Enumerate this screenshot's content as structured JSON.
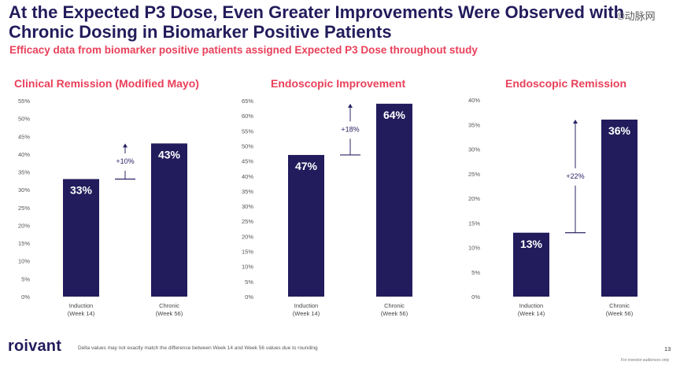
{
  "header": {
    "title_line1": "At the Expected P3 Dose, Even Greater Improvements Were Observed with",
    "title_line2": "Chronic Dosing in Biomarker Positive Patients",
    "subtitle": "Efficacy data from biomarker positive patients assigned Expected P3 Dose throughout study",
    "watermark": "©动脉网"
  },
  "colors": {
    "bar": "#221c5c",
    "accent": "#e9405a",
    "title": "#221c5c"
  },
  "chart_data": [
    {
      "type": "bar",
      "title": "Clinical Remission (Modified Mayo)",
      "categories": [
        "Induction\n(Week 14)",
        "Chronic\n(Week 56)"
      ],
      "values": [
        33,
        43
      ],
      "value_labels": [
        "33%",
        "43%"
      ],
      "delta_label": "+10%",
      "ylim": [
        0,
        55
      ],
      "yticks": [
        0,
        5,
        10,
        15,
        20,
        25,
        30,
        35,
        40,
        45,
        50,
        55
      ],
      "unit": "%"
    },
    {
      "type": "bar",
      "title": "Endoscopic Improvement",
      "categories": [
        "Induction\n(Week 14)",
        "Chronic\n(Week 56)"
      ],
      "values": [
        47,
        64
      ],
      "value_labels": [
        "47%",
        "64%"
      ],
      "delta_label": "+18%",
      "ylim": [
        0,
        65
      ],
      "yticks": [
        0,
        5,
        10,
        15,
        20,
        25,
        30,
        35,
        40,
        45,
        50,
        55,
        60,
        65
      ],
      "unit": "%"
    },
    {
      "type": "bar",
      "title": "Endoscopic Remission",
      "categories": [
        "Induction\n(Week 14)",
        "Chronic\n(Week 56)"
      ],
      "values": [
        13,
        36
      ],
      "value_labels": [
        "13%",
        "36%"
      ],
      "delta_label": "+22%",
      "ylim": [
        0,
        40
      ],
      "yticks": [
        0,
        5,
        10,
        15,
        20,
        25,
        30,
        35,
        40
      ],
      "unit": "%"
    }
  ],
  "footer": {
    "logo": "roivant",
    "footnote": "Delta values may not exactly match the difference between Week 14 and Week 56 values due to rounding",
    "page_number": "13",
    "note": "For investor audiences only"
  }
}
